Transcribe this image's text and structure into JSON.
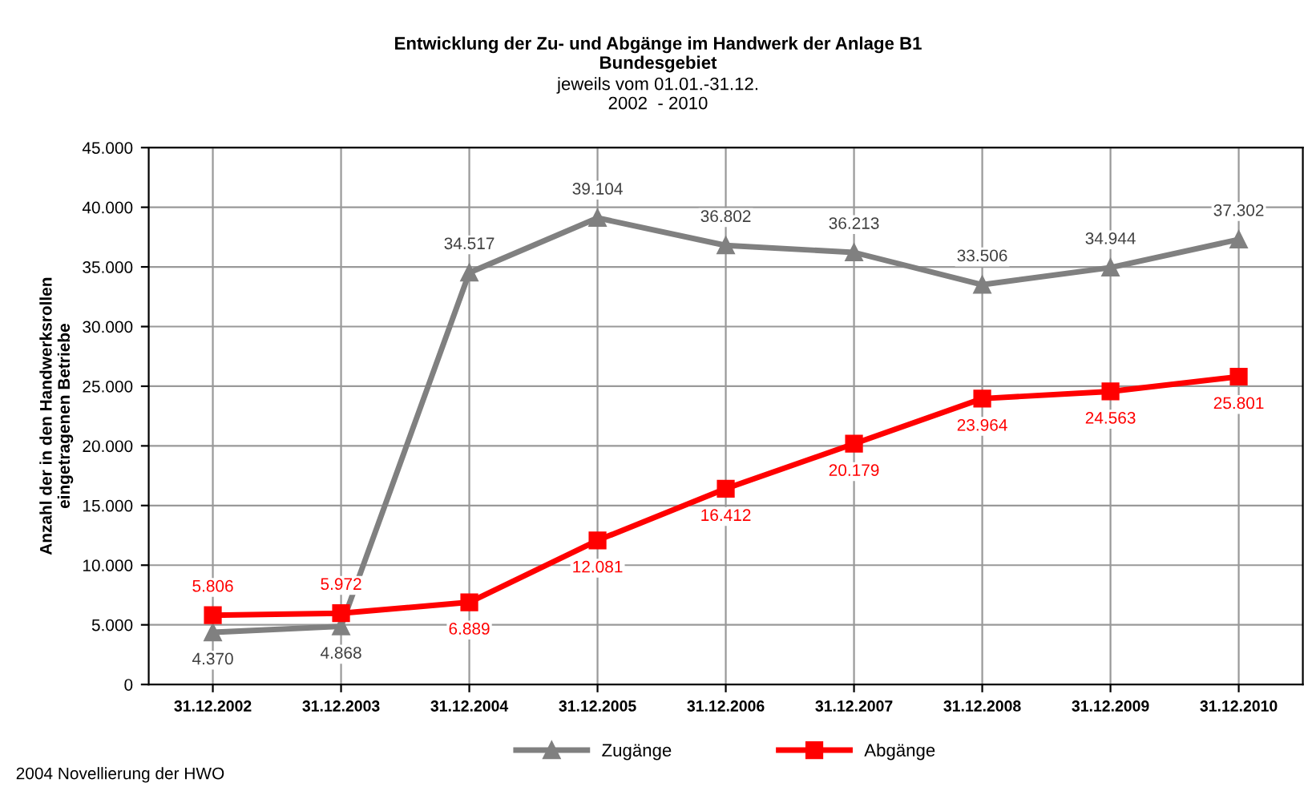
{
  "chart_data": {
    "type": "line",
    "title": "Entwicklung der Zu- und Abgänge im Handwerk der Anlage B1\nBundesgebiet",
    "subtitle": "jeweils vom 01.01.-31.12.\n2002  - 2010",
    "ylabel": "Anzahl der in den Handwerksrollen\neingetragenen Betriebe",
    "categories": [
      "31.12.2002",
      "31.12.2003",
      "31.12.2004",
      "31.12.2005",
      "31.12.2006",
      "31.12.2007",
      "31.12.2008",
      "31.12.2009",
      "31.12.2010"
    ],
    "series": [
      {
        "name": "Zugänge",
        "color": "#808080",
        "marker": "triangle",
        "values": [
          4370,
          4868,
          34517,
          39104,
          36802,
          36213,
          33506,
          34944,
          37302
        ],
        "value_labels": [
          "4.370",
          "4.868",
          "34.517",
          "39.104",
          "36.802",
          "36.213",
          "33.506",
          "34.944",
          "37.302"
        ]
      },
      {
        "name": "Abgänge",
        "color": "#ff0000",
        "marker": "square",
        "values": [
          5806,
          5972,
          6889,
          12081,
          16412,
          20179,
          23964,
          24563,
          25801
        ],
        "value_labels": [
          "5.806",
          "5.972",
          "6.889",
          "12.081",
          "16.412",
          "20.179",
          "23.964",
          "24.563",
          "25.801"
        ]
      }
    ],
    "ylim": [
      0,
      45000
    ],
    "yticks": [
      0,
      {
        "value": 5000,
        "label": "5.000"
      },
      {
        "value": 10000,
        "label": "10.000"
      },
      {
        "value": 15000,
        "label": "15.000"
      },
      {
        "value": 20000,
        "label": "20.000"
      },
      {
        "value": 25000,
        "label": "25.000"
      },
      {
        "value": 30000,
        "label": "30.000"
      },
      {
        "value": 35000,
        "label": "35.000"
      },
      {
        "value": 40000,
        "label": "40.000"
      },
      {
        "value": 45000,
        "label": "45.000"
      }
    ],
    "grid": true,
    "legend": "bottom",
    "line_style": "solid",
    "annotations": [
      "2004 Novellierung der HWO"
    ]
  }
}
